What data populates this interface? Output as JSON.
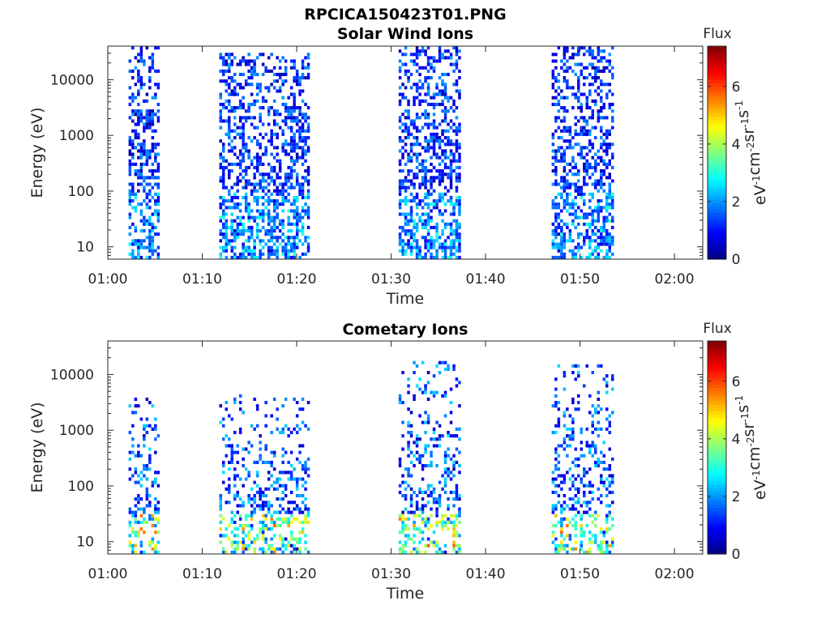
{
  "figure": {
    "title": "RPCICA150423T01.PNG"
  },
  "chart_data": [
    {
      "type": "heatmap",
      "title": "Solar Wind Ions",
      "xlabel": "Time",
      "ylabel": "Energy (eV)",
      "x_ticks": [
        "01:00",
        "01:10",
        "01:20",
        "01:30",
        "01:40",
        "01:50",
        "02:00"
      ],
      "xlim_minutes": [
        0,
        63
      ],
      "y_scale": "log",
      "ylim": [
        6,
        40000
      ],
      "y_ticks": [
        10,
        100,
        1000,
        10000
      ],
      "y_tick_labels": [
        "10",
        "100",
        "1000",
        "10000"
      ],
      "colorbar": {
        "label": "Flux",
        "unit": "eV",
        "unit_sup": "-1",
        "unit_parts": [
          [
            "eV",
            "-1"
          ],
          [
            "cm",
            "-2"
          ],
          [
            "sr",
            "-1"
          ],
          [
            "s",
            "-1"
          ]
        ],
        "range": [
          0,
          7.4
        ],
        "ticks": [
          0,
          2,
          4,
          6
        ],
        "colormap": "jet"
      },
      "bursts": [
        {
          "t_start": 2.2,
          "t_end": 5.2,
          "e_low": 6,
          "e_high": 40000
        },
        {
          "t_start": 11.8,
          "t_end": 21.2,
          "e_low": 6,
          "e_high": 30000
        },
        {
          "t_start": 30.8,
          "t_end": 37.2,
          "e_low": 6,
          "e_high": 40000
        },
        {
          "t_start": 47.0,
          "t_end": 53.4,
          "e_low": 6,
          "e_high": 40000
        }
      ],
      "grid": false
    },
    {
      "type": "heatmap",
      "title": "Cometary Ions",
      "xlabel": "Time",
      "ylabel": "Energy (eV)",
      "x_ticks": [
        "01:00",
        "01:10",
        "01:20",
        "01:30",
        "01:40",
        "01:50",
        "02:00"
      ],
      "xlim_minutes": [
        0,
        63
      ],
      "y_scale": "log",
      "ylim": [
        6,
        40000
      ],
      "y_ticks": [
        10,
        100,
        1000,
        10000
      ],
      "y_tick_labels": [
        "10",
        "100",
        "1000",
        "10000"
      ],
      "colorbar": {
        "label": "Flux",
        "unit_parts": [
          [
            "eV",
            "-1"
          ],
          [
            "cm",
            "-2"
          ],
          [
            "sr",
            "-1"
          ],
          [
            "s",
            "-1"
          ]
        ],
        "range": [
          0,
          7.4
        ],
        "ticks": [
          0,
          2,
          4,
          6
        ],
        "colormap": "jet"
      },
      "bursts": [
        {
          "t_start": 2.2,
          "t_end": 5.2,
          "e_low": 6,
          "e_high": 4000
        },
        {
          "t_start": 11.8,
          "t_end": 21.2,
          "e_low": 6,
          "e_high": 4500
        },
        {
          "t_start": 30.8,
          "t_end": 37.2,
          "e_low": 6,
          "e_high": 17000
        },
        {
          "t_start": 47.0,
          "t_end": 53.4,
          "e_low": 6,
          "e_high": 16000
        }
      ],
      "grid": false
    }
  ]
}
